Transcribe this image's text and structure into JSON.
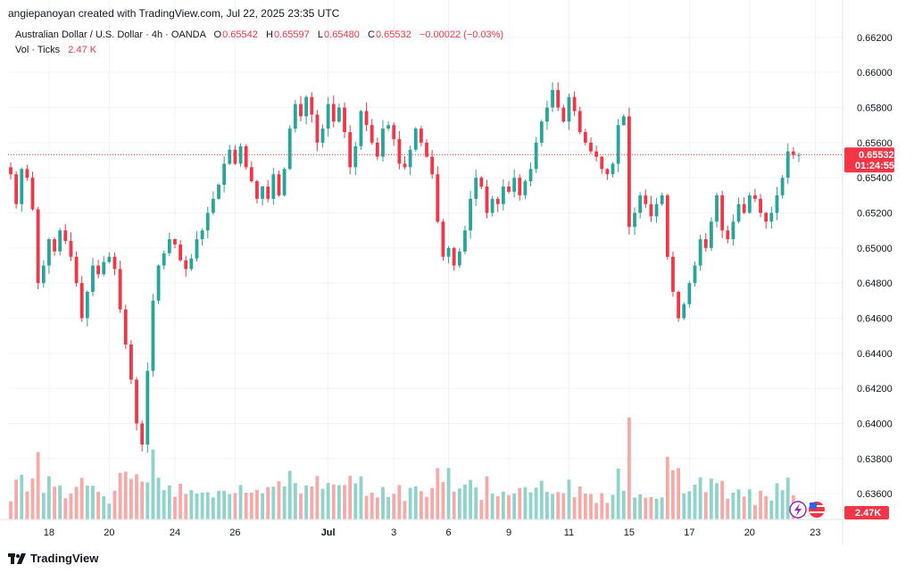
{
  "header": {
    "byline": "angiepanoyan created with TradingView.com, Jul 22, 2025 23:35 UTC",
    "symbol": "Australian Dollar / U.S. Dollar · 4h · OANDA",
    "open_label": "O",
    "open": "0.65542",
    "high_label": "H",
    "high": "0.65597",
    "low_label": "L",
    "low": "0.65480",
    "close_label": "C",
    "close": "0.65532",
    "change": "−0.00022 (−0.03%)",
    "vol_label": "Vol · Ticks",
    "vol_value": "2.47 K"
  },
  "footer": {
    "brand": "TradingView"
  },
  "colors": {
    "up": "#26a69a",
    "down": "#f23645",
    "vol_up": "#8fd3cb",
    "vol_down": "#f7a9a7",
    "grid": "#f0f3fa",
    "axis_text": "#131722"
  },
  "icons": {
    "logo": "tradingview-logo-icon",
    "flash": "lightning-icon",
    "flag": "us-flag-icon"
  },
  "chart_data": {
    "type": "candlestick",
    "timeframe": "4h",
    "y_ticks": [
      "0.66200",
      "0.66000",
      "0.65800",
      "0.65600",
      "0.65400",
      "0.65200",
      "0.65000",
      "0.64800",
      "0.64600",
      "0.64400",
      "0.64200",
      "0.64000",
      "0.63800",
      "0.63600"
    ],
    "ylim": [
      0.6355,
      0.6625
    ],
    "x_ticks": [
      {
        "label": "18",
        "index": 7
      },
      {
        "label": "20",
        "index": 18
      },
      {
        "label": "24",
        "index": 30
      },
      {
        "label": "26",
        "index": 41
      },
      {
        "label": "Jul",
        "index": 58
      },
      {
        "label": "3",
        "index": 70
      },
      {
        "label": "6",
        "index": 80
      },
      {
        "label": "9",
        "index": 91
      },
      {
        "label": "11",
        "index": 102
      },
      {
        "label": "15",
        "index": 113
      },
      {
        "label": "17",
        "index": 124
      },
      {
        "label": "20",
        "index": 135
      },
      {
        "label": "23",
        "index": 147
      }
    ],
    "last_price": "0.65532",
    "countdown": "01:24:55",
    "last_volume": "2.47K",
    "closes": [
      0.6542,
      0.6525,
      0.6545,
      0.654,
      0.6522,
      0.648,
      0.649,
      0.6505,
      0.6498,
      0.651,
      0.6504,
      0.6495,
      0.648,
      0.646,
      0.6475,
      0.649,
      0.6485,
      0.6492,
      0.6495,
      0.6488,
      0.6465,
      0.6445,
      0.6425,
      0.64,
      0.6388,
      0.643,
      0.647,
      0.649,
      0.6497,
      0.6505,
      0.6502,
      0.6493,
      0.6488,
      0.6494,
      0.6505,
      0.651,
      0.652,
      0.6528,
      0.6536,
      0.6548,
      0.6556,
      0.6548,
      0.6558,
      0.6546,
      0.6538,
      0.6528,
      0.6535,
      0.6528,
      0.6542,
      0.653,
      0.6545,
      0.6568,
      0.6582,
      0.6575,
      0.6586,
      0.6576,
      0.656,
      0.6568,
      0.6582,
      0.6572,
      0.658,
      0.6566,
      0.6546,
      0.6558,
      0.6578,
      0.657,
      0.656,
      0.6552,
      0.6568,
      0.657,
      0.6562,
      0.6548,
      0.6546,
      0.6556,
      0.6568,
      0.656,
      0.6552,
      0.6542,
      0.6515,
      0.6495,
      0.65,
      0.649,
      0.6498,
      0.651,
      0.6528,
      0.654,
      0.6535,
      0.652,
      0.6528,
      0.6525,
      0.6535,
      0.6532,
      0.654,
      0.653,
      0.6538,
      0.6545,
      0.656,
      0.6572,
      0.658,
      0.659,
      0.658,
      0.6572,
      0.6586,
      0.6578,
      0.6566,
      0.656,
      0.6555,
      0.6552,
      0.6545,
      0.6542,
      0.6548,
      0.657,
      0.6575,
      0.6512,
      0.652,
      0.653,
      0.6525,
      0.6518,
      0.6525,
      0.653,
      0.6495,
      0.6475,
      0.646,
      0.6468,
      0.648,
      0.649,
      0.6505,
      0.65,
      0.6515,
      0.653,
      0.651,
      0.6505,
      0.6515,
      0.6525,
      0.652,
      0.653,
      0.6528,
      0.652,
      0.6515,
      0.652,
      0.653,
      0.654,
      0.6555,
      0.6553,
      0.6553
    ],
    "volume_max": 2.47
  }
}
